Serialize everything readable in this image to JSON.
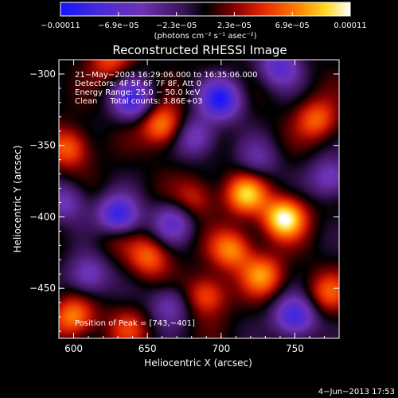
{
  "chart_data": {
    "type": "heatmap",
    "title": "Reconstructed RHESSI Image",
    "xlabel": "Heliocentric X (arcsec)",
    "ylabel": "Heliocentric Y (arcsec)",
    "xlim": [
      590,
      780
    ],
    "ylim": [
      -485,
      -290
    ],
    "x_ticks": [
      600,
      650,
      700,
      750
    ],
    "x_tick_labels": [
      "600",
      "650",
      "700",
      "750"
    ],
    "y_ticks": [
      -300,
      -350,
      -400,
      -450
    ],
    "y_tick_labels": [
      "−300",
      "−350",
      "−400",
      "−450"
    ],
    "colorbar": {
      "ticks": [
        "−0.00011",
        "−6.9e−05",
        "−2.3e−05",
        "2.3e−05",
        "6.9e−05",
        "0.00011"
      ],
      "range": [
        -0.00011,
        0.00011
      ],
      "unit_label": "(photons cm⁻² s⁻¹ asec⁻²)"
    },
    "annotations": [
      "21−May−2003 16:29:06.000 to 16:35:06.000",
      "Detectors: 4F 5F 6F 7F 8F, Att 0",
      "Energy Range: 25.0 − 50.0 keV",
      "Clean     Total counts: 3.86E+03"
    ],
    "peak_label": "Position of Peak = [743,−401]",
    "peak": {
      "x": 743,
      "y": -401
    },
    "sources": [
      {
        "x": 743,
        "y": -401,
        "v": 0.00011
      },
      {
        "x": 717,
        "y": -384,
        "v": 8.5e-05
      },
      {
        "x": 660,
        "y": -336,
        "v": 7.5e-05
      },
      {
        "x": 728,
        "y": -441,
        "v": 7e-05
      },
      {
        "x": 707,
        "y": -423,
        "v": 7e-05
      },
      {
        "x": 651,
        "y": -428,
        "v": 6e-05
      },
      {
        "x": 690,
        "y": -455,
        "v": 6e-05
      },
      {
        "x": 600,
        "y": -470,
        "v": 7e-05
      },
      {
        "x": 597,
        "y": -352,
        "v": 6e-05
      },
      {
        "x": 624,
        "y": -290,
        "v": 5e-05
      },
      {
        "x": 765,
        "y": -332,
        "v": 6e-05
      },
      {
        "x": 682,
        "y": -387,
        "v": 4e-05
      },
      {
        "x": 773,
        "y": -453,
        "v": 5e-05
      },
      {
        "x": 637,
        "y": -478,
        "v": 4e-05
      },
      {
        "x": 628,
        "y": -410,
        "v": 3.5e-05
      },
      {
        "x": 630,
        "y": -400,
        "v": -0.00011
      },
      {
        "x": 700,
        "y": -318,
        "v": -0.0001
      },
      {
        "x": 640,
        "y": -318,
        "v": -8e-05
      },
      {
        "x": 740,
        "y": -295,
        "v": -7e-05
      },
      {
        "x": 750,
        "y": -470,
        "v": -9e-05
      },
      {
        "x": 667,
        "y": -404,
        "v": -6e-05
      },
      {
        "x": 683,
        "y": -344,
        "v": -6e-05
      },
      {
        "x": 774,
        "y": -373,
        "v": -6e-05
      },
      {
        "x": 610,
        "y": -441,
        "v": -6e-05
      },
      {
        "x": 665,
        "y": -462,
        "v": -5e-05
      },
      {
        "x": 595,
        "y": -390,
        "v": -5e-05
      },
      {
        "x": 725,
        "y": -360,
        "v": -4e-05
      }
    ]
  },
  "footer": {
    "timestamp": "4−Jun−2013 17:53"
  }
}
